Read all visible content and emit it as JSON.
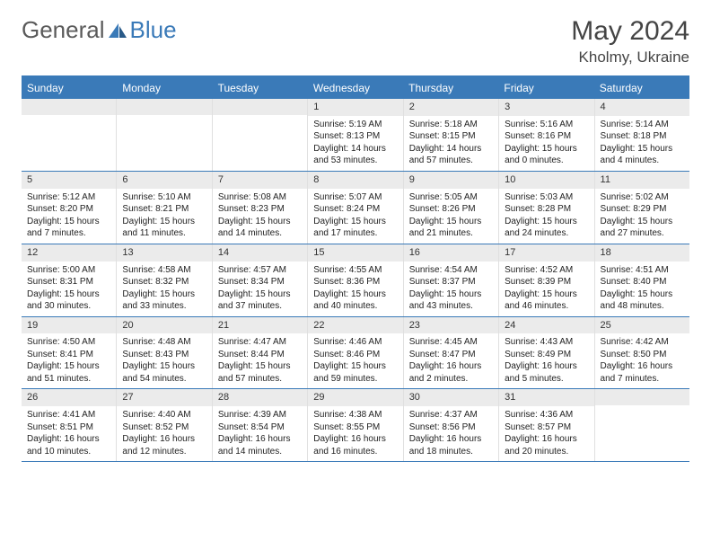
{
  "logo": {
    "part1": "General",
    "part2": "Blue"
  },
  "title": "May 2024",
  "location": "Kholmy, Ukraine",
  "dayNames": [
    "Sunday",
    "Monday",
    "Tuesday",
    "Wednesday",
    "Thursday",
    "Friday",
    "Saturday"
  ],
  "colors": {
    "accent": "#3a7ab8",
    "header_bg": "#3a7ab8",
    "daynum_bg": "#ebebeb"
  },
  "weeks": [
    [
      {
        "n": "",
        "sr": "",
        "ss": "",
        "dl": ""
      },
      {
        "n": "",
        "sr": "",
        "ss": "",
        "dl": ""
      },
      {
        "n": "",
        "sr": "",
        "ss": "",
        "dl": ""
      },
      {
        "n": "1",
        "sr": "5:19 AM",
        "ss": "8:13 PM",
        "dl": "14 hours and 53 minutes."
      },
      {
        "n": "2",
        "sr": "5:18 AM",
        "ss": "8:15 PM",
        "dl": "14 hours and 57 minutes."
      },
      {
        "n": "3",
        "sr": "5:16 AM",
        "ss": "8:16 PM",
        "dl": "15 hours and 0 minutes."
      },
      {
        "n": "4",
        "sr": "5:14 AM",
        "ss": "8:18 PM",
        "dl": "15 hours and 4 minutes."
      }
    ],
    [
      {
        "n": "5",
        "sr": "5:12 AM",
        "ss": "8:20 PM",
        "dl": "15 hours and 7 minutes."
      },
      {
        "n": "6",
        "sr": "5:10 AM",
        "ss": "8:21 PM",
        "dl": "15 hours and 11 minutes."
      },
      {
        "n": "7",
        "sr": "5:08 AM",
        "ss": "8:23 PM",
        "dl": "15 hours and 14 minutes."
      },
      {
        "n": "8",
        "sr": "5:07 AM",
        "ss": "8:24 PM",
        "dl": "15 hours and 17 minutes."
      },
      {
        "n": "9",
        "sr": "5:05 AM",
        "ss": "8:26 PM",
        "dl": "15 hours and 21 minutes."
      },
      {
        "n": "10",
        "sr": "5:03 AM",
        "ss": "8:28 PM",
        "dl": "15 hours and 24 minutes."
      },
      {
        "n": "11",
        "sr": "5:02 AM",
        "ss": "8:29 PM",
        "dl": "15 hours and 27 minutes."
      }
    ],
    [
      {
        "n": "12",
        "sr": "5:00 AM",
        "ss": "8:31 PM",
        "dl": "15 hours and 30 minutes."
      },
      {
        "n": "13",
        "sr": "4:58 AM",
        "ss": "8:32 PM",
        "dl": "15 hours and 33 minutes."
      },
      {
        "n": "14",
        "sr": "4:57 AM",
        "ss": "8:34 PM",
        "dl": "15 hours and 37 minutes."
      },
      {
        "n": "15",
        "sr": "4:55 AM",
        "ss": "8:36 PM",
        "dl": "15 hours and 40 minutes."
      },
      {
        "n": "16",
        "sr": "4:54 AM",
        "ss": "8:37 PM",
        "dl": "15 hours and 43 minutes."
      },
      {
        "n": "17",
        "sr": "4:52 AM",
        "ss": "8:39 PM",
        "dl": "15 hours and 46 minutes."
      },
      {
        "n": "18",
        "sr": "4:51 AM",
        "ss": "8:40 PM",
        "dl": "15 hours and 48 minutes."
      }
    ],
    [
      {
        "n": "19",
        "sr": "4:50 AM",
        "ss": "8:41 PM",
        "dl": "15 hours and 51 minutes."
      },
      {
        "n": "20",
        "sr": "4:48 AM",
        "ss": "8:43 PM",
        "dl": "15 hours and 54 minutes."
      },
      {
        "n": "21",
        "sr": "4:47 AM",
        "ss": "8:44 PM",
        "dl": "15 hours and 57 minutes."
      },
      {
        "n": "22",
        "sr": "4:46 AM",
        "ss": "8:46 PM",
        "dl": "15 hours and 59 minutes."
      },
      {
        "n": "23",
        "sr": "4:45 AM",
        "ss": "8:47 PM",
        "dl": "16 hours and 2 minutes."
      },
      {
        "n": "24",
        "sr": "4:43 AM",
        "ss": "8:49 PM",
        "dl": "16 hours and 5 minutes."
      },
      {
        "n": "25",
        "sr": "4:42 AM",
        "ss": "8:50 PM",
        "dl": "16 hours and 7 minutes."
      }
    ],
    [
      {
        "n": "26",
        "sr": "4:41 AM",
        "ss": "8:51 PM",
        "dl": "16 hours and 10 minutes."
      },
      {
        "n": "27",
        "sr": "4:40 AM",
        "ss": "8:52 PM",
        "dl": "16 hours and 12 minutes."
      },
      {
        "n": "28",
        "sr": "4:39 AM",
        "ss": "8:54 PM",
        "dl": "16 hours and 14 minutes."
      },
      {
        "n": "29",
        "sr": "4:38 AM",
        "ss": "8:55 PM",
        "dl": "16 hours and 16 minutes."
      },
      {
        "n": "30",
        "sr": "4:37 AM",
        "ss": "8:56 PM",
        "dl": "16 hours and 18 minutes."
      },
      {
        "n": "31",
        "sr": "4:36 AM",
        "ss": "8:57 PM",
        "dl": "16 hours and 20 minutes."
      },
      {
        "n": "",
        "sr": "",
        "ss": "",
        "dl": ""
      }
    ]
  ]
}
